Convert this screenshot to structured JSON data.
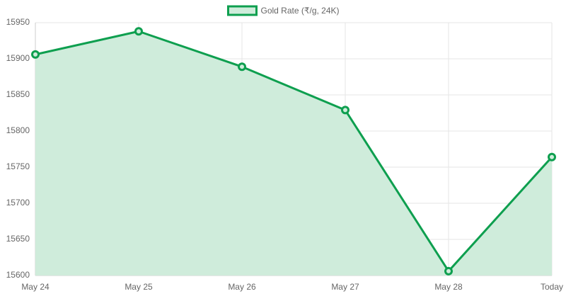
{
  "chart_data": {
    "type": "line",
    "categories": [
      "May 24",
      "May 25",
      "May 26",
      "May 27",
      "May 28",
      "Today"
    ],
    "series": [
      {
        "name": "Gold Rate (₹/g, 24K)",
        "color": "#0e9f4f",
        "fill_color": "#cfecdb",
        "values": [
          15906,
          15938,
          15889,
          15829,
          15606,
          15764
        ]
      }
    ],
    "ylim": [
      15600,
      15950
    ],
    "yticks": [
      15600,
      15650,
      15700,
      15750,
      15800,
      15850,
      15900,
      15950
    ],
    "grid": true,
    "fill": true,
    "legend": "top"
  }
}
